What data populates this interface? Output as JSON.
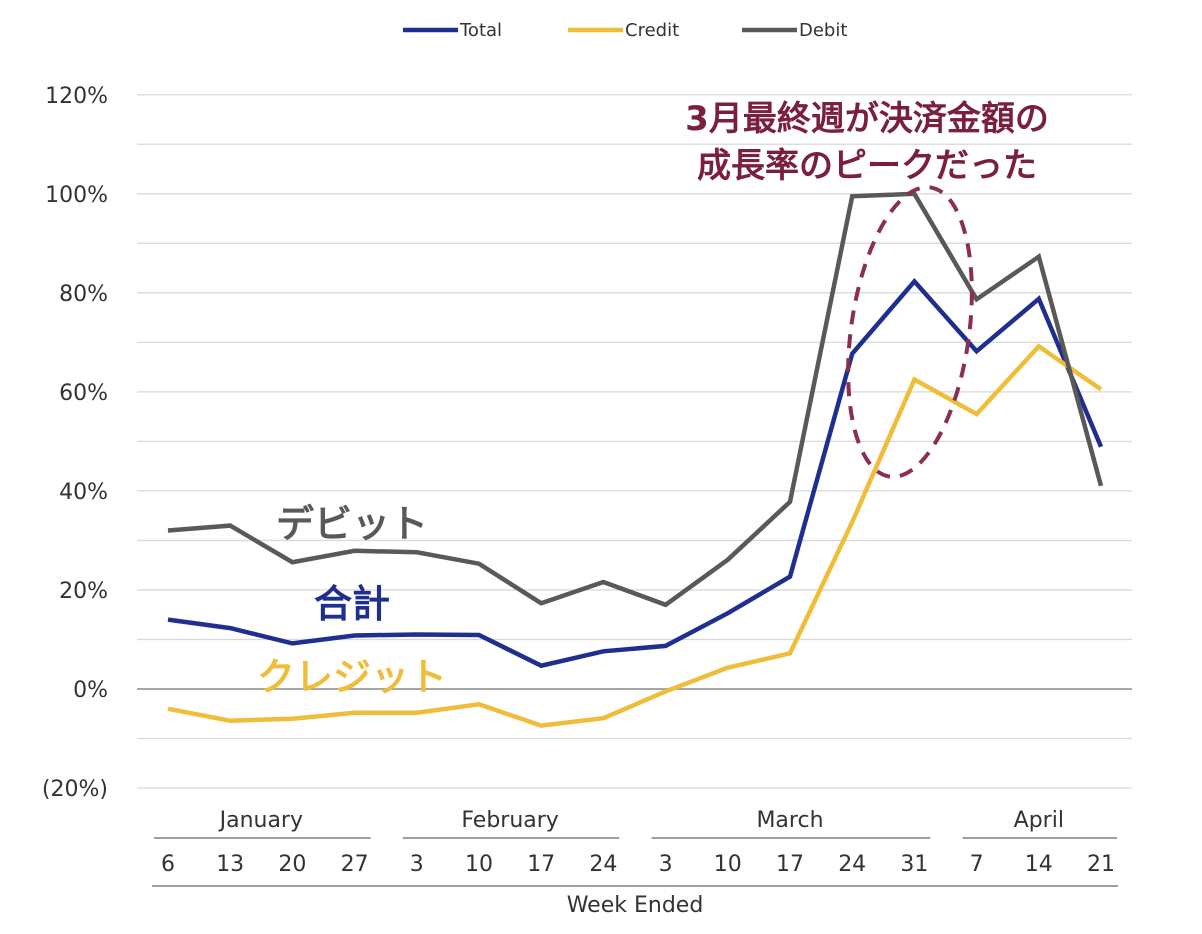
{
  "chart_data": {
    "type": "line",
    "legend_position": "top-center",
    "grid": true,
    "xlabel": "Week Ended",
    "ylabel": "",
    "ylim": [
      -20,
      125
    ],
    "y_ticks": [
      "(20%)",
      "0%",
      "20%",
      "40%",
      "60%",
      "80%",
      "100%",
      "120%"
    ],
    "y_tick_values": [
      -20,
      0,
      20,
      40,
      60,
      80,
      100,
      120
    ],
    "x_categories": [
      "6",
      "13",
      "20",
      "27",
      "3",
      "10",
      "17",
      "24",
      "3",
      "10",
      "17",
      "24",
      "31",
      "7",
      "14",
      "21"
    ],
    "months": [
      {
        "label": "January",
        "start": 0,
        "end": 3
      },
      {
        "label": "February",
        "start": 4,
        "end": 7
      },
      {
        "label": "March",
        "start": 8,
        "end": 12
      },
      {
        "label": "April",
        "start": 13,
        "end": 15
      }
    ],
    "series": [
      {
        "name": "Total",
        "color": "#1f2f8f",
        "values": [
          14,
          12.3,
          9.2,
          10.8,
          11,
          10.9,
          4.7,
          7.6,
          8.7,
          15.3,
          22.7,
          67.7,
          82.3,
          68.2,
          78.8,
          48.9
        ]
      },
      {
        "name": "Credit",
        "color": "#f0bd3a",
        "values": [
          -4,
          -6.4,
          -6,
          -4.8,
          -4.8,
          -3.1,
          -7.4,
          -5.9,
          -0.5,
          4.3,
          7.2,
          33.7,
          62.5,
          55.5,
          69.2,
          60.5
        ]
      },
      {
        "name": "Debit",
        "color": "#595959",
        "values": [
          32,
          33,
          25.6,
          27.9,
          27.6,
          25.3,
          17.3,
          21.6,
          17,
          26.1,
          37.8,
          99.5,
          100,
          78.7,
          87.3,
          41
        ]
      }
    ],
    "annotations": {
      "debit_label": "デビット",
      "total_label": "合計",
      "credit_label": "クレジット",
      "peak_line1": "3月最終週が決済金額の",
      "peak_line2": "成長率のピークだった"
    },
    "colors": {
      "peak_text": "#7a1f3d",
      "peak_ellipse": "#8b2e52",
      "grid": "#d9d9d9",
      "zero_line": "#a6a6a6"
    }
  }
}
